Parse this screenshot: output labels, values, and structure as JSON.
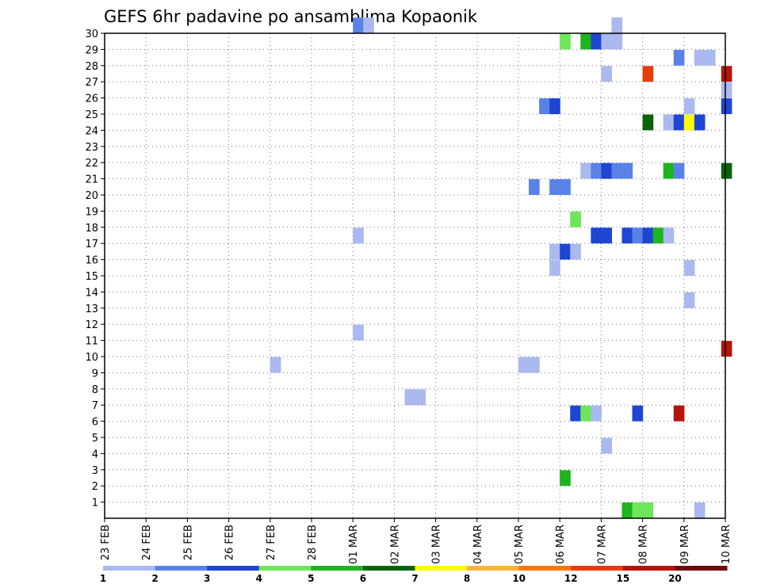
{
  "chart_data": {
    "type": "heatmap",
    "title": "GEFS 6hr padavine po ansamblima Kopaonik",
    "xlabel": "",
    "ylabel": "",
    "x_tick_labels": [
      "23 FEB",
      "24 FEB",
      "25 FEB",
      "26 FEB",
      "27 FEB",
      "28 FEB",
      "01 MAR",
      "02 MAR",
      "03 MAR",
      "04 MAR",
      "05 MAR",
      "06 MAR",
      "07 MAR",
      "08 MAR",
      "09 MAR",
      "10 MAR"
    ],
    "x_range_days": [
      0,
      15
    ],
    "y_tick_labels": [
      "1",
      "2",
      "3",
      "4",
      "5",
      "6",
      "7",
      "8",
      "9",
      "10",
      "11",
      "12",
      "13",
      "14",
      "15",
      "16",
      "17",
      "18",
      "19",
      "20",
      "21",
      "22",
      "23",
      "24",
      "25",
      "26",
      "27",
      "28",
      "29",
      "30"
    ],
    "y_range": [
      0,
      30
    ],
    "step_hours": 6,
    "grid": true,
    "legend": {
      "placement": "bottom",
      "labels": [
        "1",
        "2",
        "3",
        "4",
        "5",
        "6",
        "7",
        "8",
        "10",
        "12",
        "15",
        "20"
      ],
      "colors": [
        "#aab9f0",
        "#5a82e6",
        "#1e46d2",
        "#6ee65a",
        "#1eb41e",
        "#0a640a",
        "#fafa0a",
        "#fab43c",
        "#fa780a",
        "#e63c0a",
        "#b4140a",
        "#6e0a0a"
      ]
    },
    "cells": [
      {
        "m": 30,
        "t": 6.0,
        "c": 2
      },
      {
        "m": 30,
        "t": 6.25,
        "c": 1
      },
      {
        "m": 29,
        "t": 11.0,
        "c": 4
      },
      {
        "m": 29,
        "t": 11.5,
        "c": 5
      },
      {
        "m": 29,
        "t": 11.75,
        "c": 3
      },
      {
        "m": 29,
        "t": 12.0,
        "c": 1
      },
      {
        "m": 29,
        "t": 12.25,
        "c": 1
      },
      {
        "m": 30,
        "t": 12.25,
        "c": 1
      },
      {
        "m": 28,
        "t": 13.75,
        "c": 2
      },
      {
        "m": 28,
        "t": 14.25,
        "c": 1
      },
      {
        "m": 28,
        "t": 14.5,
        "c": 1
      },
      {
        "m": 27,
        "t": 12.0,
        "c": 1
      },
      {
        "m": 27,
        "t": 13.0,
        "c": 10
      },
      {
        "m": 27,
        "t": 14.9,
        "c": 11
      },
      {
        "m": 26,
        "t": 14.9,
        "c": 1
      },
      {
        "m": 25,
        "t": 10.5,
        "c": 2
      },
      {
        "m": 25,
        "t": 10.75,
        "c": 3
      },
      {
        "m": 25,
        "t": 14.0,
        "c": 1
      },
      {
        "m": 25,
        "t": 14.9,
        "c": 3
      },
      {
        "m": 24,
        "t": 13.0,
        "c": 6
      },
      {
        "m": 24,
        "t": 13.5,
        "c": 1
      },
      {
        "m": 24,
        "t": 13.75,
        "c": 3
      },
      {
        "m": 24,
        "t": 14.0,
        "c": 7
      },
      {
        "m": 24,
        "t": 14.25,
        "c": 3
      },
      {
        "m": 21,
        "t": 11.5,
        "c": 1
      },
      {
        "m": 21,
        "t": 11.75,
        "c": 2
      },
      {
        "m": 21,
        "t": 12.0,
        "c": 3
      },
      {
        "m": 21,
        "t": 12.25,
        "c": 2
      },
      {
        "m": 21,
        "t": 12.5,
        "c": 2
      },
      {
        "m": 21,
        "t": 13.5,
        "c": 5
      },
      {
        "m": 21,
        "t": 13.75,
        "c": 2
      },
      {
        "m": 21,
        "t": 14.9,
        "c": 6
      },
      {
        "m": 20,
        "t": 10.25,
        "c": 2
      },
      {
        "m": 20,
        "t": 10.75,
        "c": 2
      },
      {
        "m": 20,
        "t": 11.0,
        "c": 2
      },
      {
        "m": 18,
        "t": 11.25,
        "c": 4
      },
      {
        "m": 17,
        "t": 6.0,
        "c": 1
      },
      {
        "m": 17,
        "t": 11.75,
        "c": 3
      },
      {
        "m": 17,
        "t": 12.0,
        "c": 3
      },
      {
        "m": 17,
        "t": 12.5,
        "c": 3
      },
      {
        "m": 17,
        "t": 12.75,
        "c": 2
      },
      {
        "m": 17,
        "t": 13.0,
        "c": 3
      },
      {
        "m": 17,
        "t": 13.25,
        "c": 5
      },
      {
        "m": 17,
        "t": 13.5,
        "c": 1
      },
      {
        "m": 16,
        "t": 10.75,
        "c": 1
      },
      {
        "m": 16,
        "t": 11.0,
        "c": 3
      },
      {
        "m": 16,
        "t": 11.25,
        "c": 1
      },
      {
        "m": 15,
        "t": 10.75,
        "c": 1
      },
      {
        "m": 15,
        "t": 14.0,
        "c": 1
      },
      {
        "m": 13,
        "t": 14.0,
        "c": 1
      },
      {
        "m": 11,
        "t": 6.0,
        "c": 1
      },
      {
        "m": 10,
        "t": 14.9,
        "c": 11
      },
      {
        "m": 9,
        "t": 4.0,
        "c": 1
      },
      {
        "m": 9,
        "t": 10.0,
        "c": 1
      },
      {
        "m": 9,
        "t": 10.25,
        "c": 1
      },
      {
        "m": 7,
        "t": 7.25,
        "c": 1
      },
      {
        "m": 7,
        "t": 7.5,
        "c": 1
      },
      {
        "m": 6,
        "t": 11.25,
        "c": 3
      },
      {
        "m": 6,
        "t": 11.5,
        "c": 4
      },
      {
        "m": 6,
        "t": 11.75,
        "c": 1
      },
      {
        "m": 6,
        "t": 12.75,
        "c": 3
      },
      {
        "m": 6,
        "t": 13.75,
        "c": 11
      },
      {
        "m": 4,
        "t": 12.0,
        "c": 1
      },
      {
        "m": 2,
        "t": 11.0,
        "c": 5
      },
      {
        "m": 0,
        "t": 12.5,
        "c": 5
      },
      {
        "m": 0,
        "t": 12.75,
        "c": 4
      },
      {
        "m": 0,
        "t": 13.0,
        "c": 4
      },
      {
        "m": 0,
        "t": 14.25,
        "c": 1
      }
    ]
  }
}
